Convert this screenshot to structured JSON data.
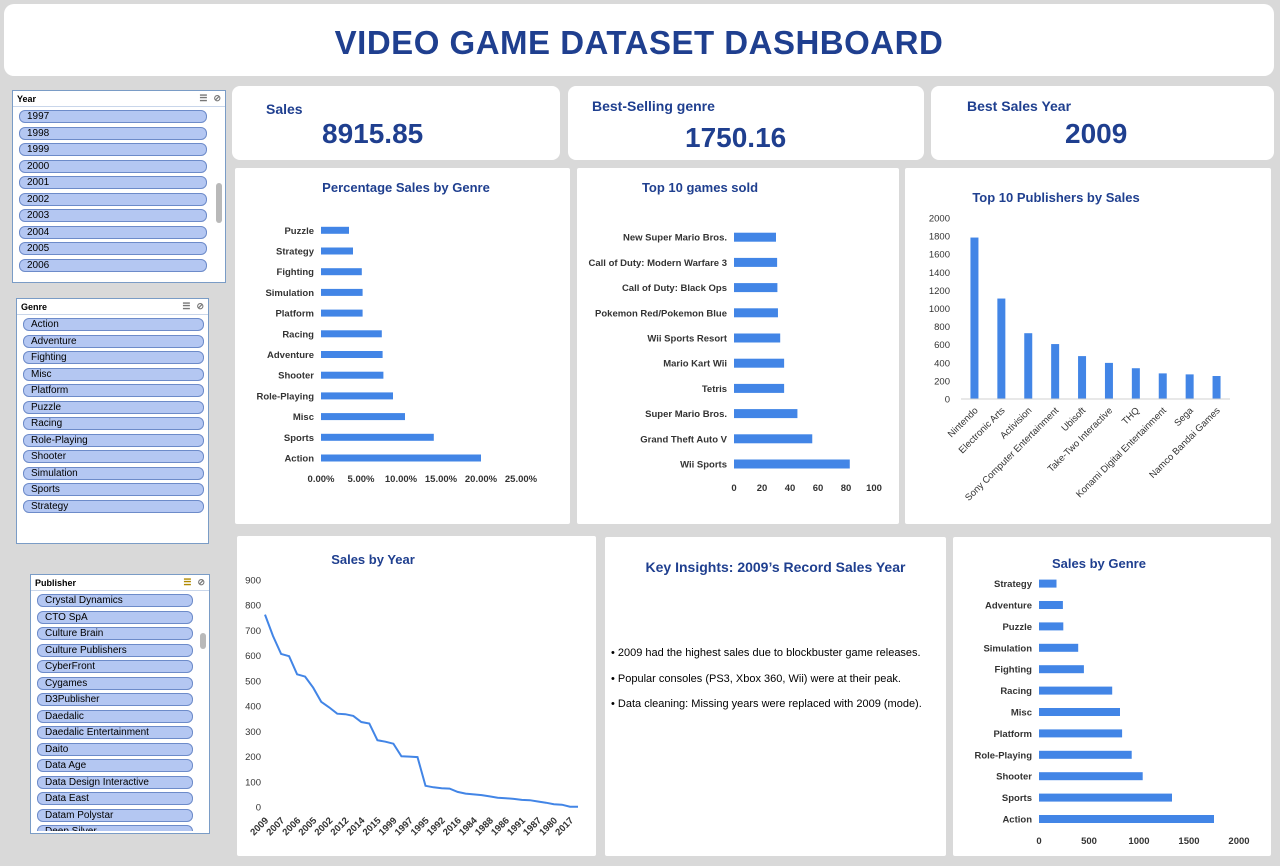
{
  "header": {
    "title": "VIDEO GAME DATASET DASHBOARD"
  },
  "kpis": {
    "sales_label": "Sales",
    "sales_value": "8915.85",
    "genre_label": "Best-Selling genre",
    "genre_value": "1750.16",
    "year_label": "Best Sales Year",
    "year_value": "2009"
  },
  "slicers": {
    "year": {
      "title": "Year",
      "items": [
        "1997",
        "1998",
        "1999",
        "2000",
        "2001",
        "2002",
        "2003",
        "2004",
        "2005",
        "2006"
      ]
    },
    "genre": {
      "title": "Genre",
      "items": [
        "Action",
        "Adventure",
        "Fighting",
        "Misc",
        "Platform",
        "Puzzle",
        "Racing",
        "Role-Playing",
        "Shooter",
        "Simulation",
        "Sports",
        "Strategy"
      ]
    },
    "publisher": {
      "title": "Publisher",
      "items": [
        "Crystal Dynamics",
        "CTO SpA",
        "Culture Brain",
        "Culture Publishers",
        "CyberFront",
        "Cygames",
        "D3Publisher",
        "Daedalic",
        "Daedalic Entertainment",
        "Daito",
        "Data Age",
        "Data Design Interactive",
        "Data East",
        "Datam Polystar",
        "Deep Silver"
      ]
    }
  },
  "insights": {
    "title": "Key Insights: 2009’s Record Sales Year",
    "lines": [
      "• 2009 had the highest sales due to blockbuster game releases.",
      "• Popular consoles (PS3, Xbox 360, Wii) were at their peak.",
      "• Data cleaning: Missing years were replaced with 2009 (mode)."
    ]
  },
  "colors": {
    "bar": "#4285e6",
    "title": "#1f3f8f",
    "slicer_item": "#b4c7f2"
  },
  "chart_data": [
    {
      "id": "pct_genre",
      "type": "bar",
      "orientation": "horizontal",
      "title": "Percentage Sales by Genre",
      "categories": [
        "Action",
        "Sports",
        "Misc",
        "Role-Playing",
        "Shooter",
        "Adventure",
        "Racing",
        "Platform",
        "Simulation",
        "Fighting",
        "Strategy",
        "Puzzle"
      ],
      "values": [
        0.2,
        0.141,
        0.105,
        0.09,
        0.078,
        0.077,
        0.076,
        0.052,
        0.052,
        0.051,
        0.04,
        0.035
      ],
      "xlim": [
        0,
        0.25
      ],
      "xticks": [
        "0.00%",
        "5.00%",
        "10.00%",
        "15.00%",
        "20.00%",
        "25.00%"
      ]
    },
    {
      "id": "top_games",
      "type": "bar",
      "orientation": "horizontal",
      "title": "Top 10 games sold",
      "categories": [
        "Wii Sports",
        "Grand Theft Auto V",
        "Super Mario Bros.",
        "Tetris",
        "Mario Kart Wii",
        "Wii Sports Resort",
        "Pokemon Red/Pokemon Blue",
        "Call of Duty: Black Ops",
        "Call of Duty: Modern Warfare 3",
        "New Super Mario Bros."
      ],
      "values": [
        82.7,
        55.9,
        45.3,
        35.8,
        35.8,
        33.0,
        31.4,
        31.0,
        30.8,
        30.0
      ],
      "xlim": [
        0,
        100
      ],
      "xticks": [
        "0",
        "20",
        "40",
        "60",
        "80",
        "100"
      ]
    },
    {
      "id": "top_publishers",
      "type": "bar",
      "orientation": "vertical",
      "title": "Top 10 Publishers by Sales",
      "categories": [
        "Nintendo",
        "Electronic Arts",
        "Activision",
        "Sony Computer Entertainment",
        "Ubisoft",
        "Take-Two Interactive",
        "THQ",
        "Konami Digital Entertainment",
        "Sega",
        "Namco Bandai Games"
      ],
      "values": [
        1784,
        1110,
        727,
        607,
        474,
        399,
        340,
        283,
        272,
        254
      ],
      "ylim": [
        0,
        2000
      ],
      "yticks": [
        "0",
        "200",
        "400",
        "600",
        "800",
        "1000",
        "1200",
        "1400",
        "1600",
        "1800",
        "2000"
      ]
    },
    {
      "id": "sales_year",
      "type": "line",
      "title": "Sales by Year",
      "x_labels": [
        "2009",
        "2007",
        "2006",
        "2005",
        "2002",
        "2012",
        "2014",
        "2015",
        "1999",
        "1997",
        "1995",
        "1992",
        "2016",
        "1984",
        "1988",
        "1986",
        "1991",
        "1987",
        "1980",
        "2017"
      ],
      "x_label_every": 2,
      "values": [
        763,
        678,
        607,
        598,
        526,
        517,
        473,
        417,
        395,
        370,
        368,
        361,
        337,
        331,
        265,
        259,
        251,
        201,
        200,
        198,
        84,
        78,
        74,
        73,
        60,
        53,
        50,
        47,
        42,
        37,
        35,
        32,
        28,
        27,
        22,
        17,
        11,
        9,
        1,
        1
      ],
      "ylim": [
        0,
        900
      ],
      "yticks": [
        "0",
        "100",
        "200",
        "300",
        "400",
        "500",
        "600",
        "700",
        "800",
        "900"
      ]
    },
    {
      "id": "sales_genre",
      "type": "bar",
      "orientation": "horizontal",
      "title": "Sales by Genre",
      "categories": [
        "Action",
        "Sports",
        "Shooter",
        "Role-Playing",
        "Platform",
        "Misc",
        "Racing",
        "Fighting",
        "Simulation",
        "Puzzle",
        "Adventure",
        "Strategy"
      ],
      "values": [
        1750,
        1330,
        1037,
        927,
        831,
        810,
        732,
        449,
        392,
        243,
        239,
        175
      ],
      "xlim": [
        0,
        2000
      ],
      "xticks": [
        "0",
        "500",
        "1000",
        "1500",
        "2000"
      ]
    }
  ]
}
